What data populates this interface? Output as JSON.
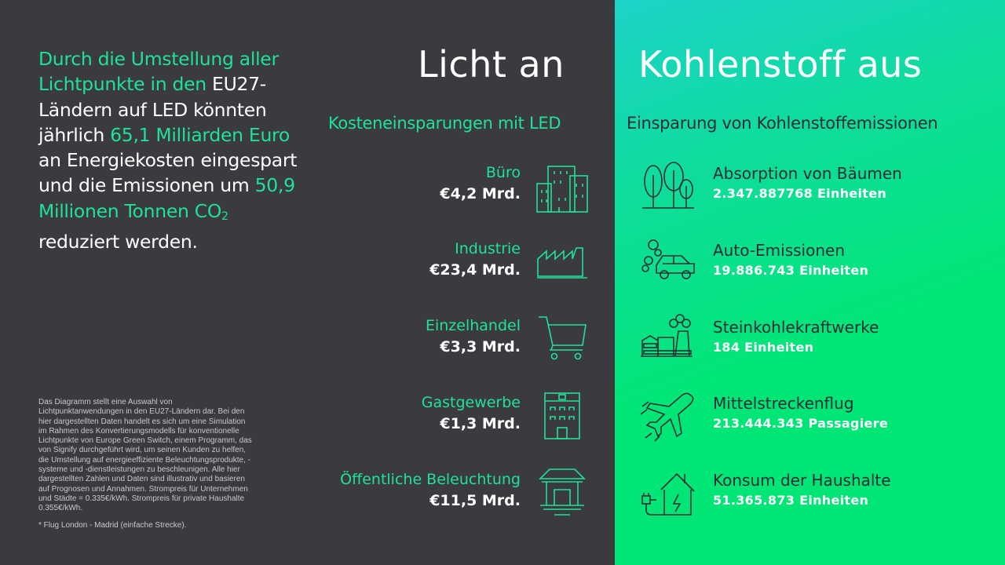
{
  "intro": {
    "p1": "Durch die Umstellung aller Lichtpunkte in den ",
    "p2": "EU27-Ländern auf LED könnten jährlich ",
    "p3": "65,1 Milliarden Euro",
    "p4": " an Energiekosten eingespart und die Emissionen um ",
    "p5": "50,9 Millionen Tonnen CO",
    "p5sub": "2",
    "p6": " reduziert werden."
  },
  "footnote": {
    "text": "Das Diagramm stellt eine Auswahl von Lichtpunktanwendungen in den EU27-Ländern dar. Bei den hier dargestellten Daten handelt es sich um eine Simulation im Rahmen des Konvertierungsmodells für konventionelle Lichtpunkte von Europe Green Switch, einem Programm, das von Signify durchgeführt wird, um seinen Kunden zu helfen, die Umstellung auf energieeffiziente Beleuchtungsprodukte, -systeme und -dienstleistungen zu beschleunigen. Alle hier dargestellten Zahlen und Daten sind illustrativ und basieren auf Prognosen und Annahmen. Strompreis für Unternehmen und Städte = 0.335€/kWh. Strompreis für private Haushalte 0.355€/kWh.",
    "flight": "* Flug London - Madrid (einfache Strecke)."
  },
  "titles": {
    "left": "Licht an",
    "right": "Kohlenstoff aus",
    "sub_left": "Kosteneinsparungen mit LED",
    "sub_right": "Einsparung von Kohlenstoffemissionen"
  },
  "costs": [
    {
      "label": "Büro",
      "value": "€4,2 Mrd.",
      "icon": "office-building-icon"
    },
    {
      "label": "Industrie",
      "value": "€23,4 Mrd.",
      "icon": "factory-icon"
    },
    {
      "label": "Einzelhandel",
      "value": "€3,3 Mrd.",
      "icon": "shopping-cart-icon"
    },
    {
      "label": "Gastgewerbe",
      "value": "€1,3 Mrd.",
      "icon": "hotel-icon"
    },
    {
      "label": "Öffentliche Beleuchtung",
      "value": "€11,5 Mrd.",
      "icon": "street-lamp-icon"
    }
  ],
  "emissions": [
    {
      "label": "Absorption von Bäumen",
      "value": "2.347.887768 Einheiten",
      "icon": "trees-icon"
    },
    {
      "label": "Auto-Emissionen",
      "value": "19.886.743 Einheiten",
      "icon": "car-emission-icon"
    },
    {
      "label": "Steinkohlekraftwerke",
      "value": "184 Einheiten",
      "icon": "power-plant-icon"
    },
    {
      "label": "Mittelstreckenflug",
      "value": "213.444.343 Passagiere",
      "icon": "airplane-icon"
    },
    {
      "label": "Konsum der Haushalte",
      "value": "51.365.873 Einheiten",
      "icon": "house-plug-icon"
    }
  ],
  "colors": {
    "accent": "#1ee29a",
    "dark_bg": "#3b3a3f",
    "green_bg": "#00e676",
    "dark_text": "#2b2e35"
  }
}
